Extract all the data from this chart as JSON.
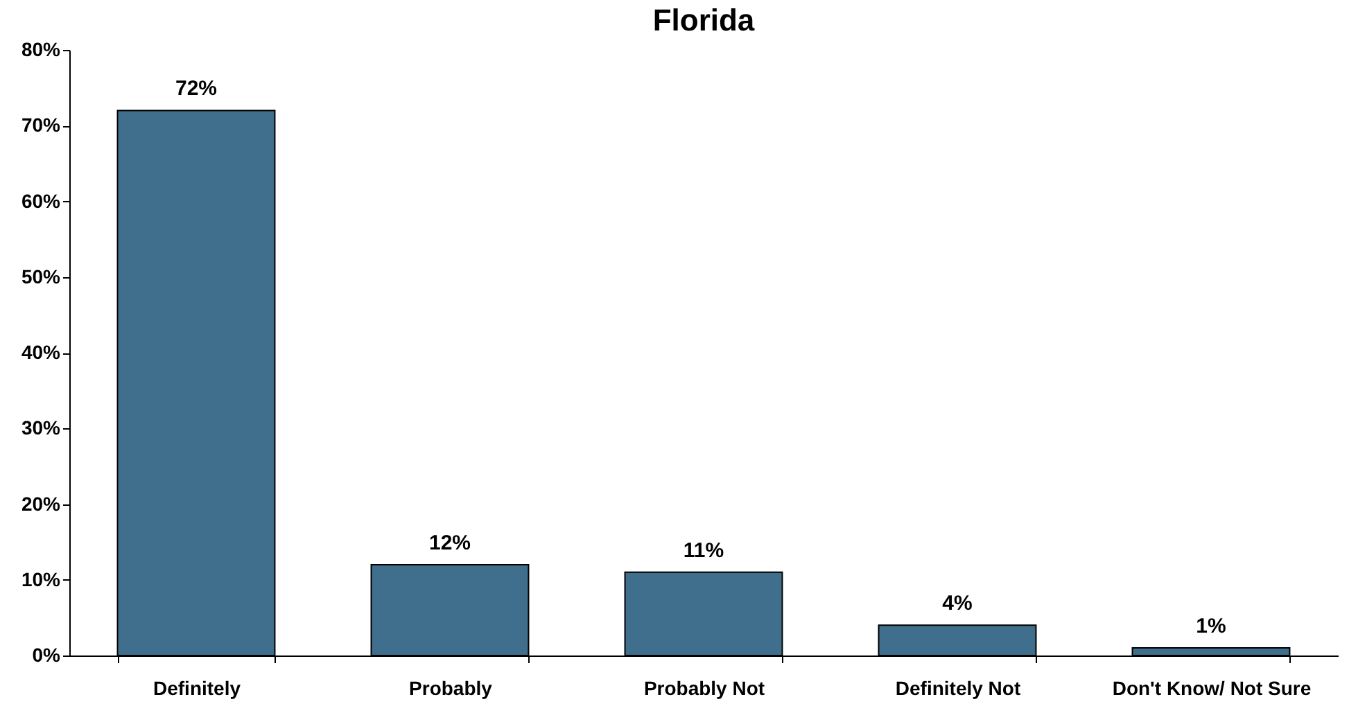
{
  "chart_data": {
    "type": "bar",
    "title": "Florida",
    "categories": [
      "Definitely",
      "Probably",
      "Probably Not",
      "Definitely Not",
      "Don't Know/ Not Sure"
    ],
    "values": [
      72,
      12,
      11,
      4,
      1
    ],
    "value_labels": [
      "72%",
      "12%",
      "11%",
      "4%",
      "1%"
    ],
    "color": "#3f6f8c",
    "ylim": [
      0,
      80
    ],
    "yticks": [
      {
        "value": 0,
        "label": "0%"
      },
      {
        "value": 10,
        "label": "10%"
      },
      {
        "value": 20,
        "label": "20%"
      },
      {
        "value": 30,
        "label": "30%"
      },
      {
        "value": 40,
        "label": "40%"
      },
      {
        "value": 50,
        "label": "50%"
      },
      {
        "value": 60,
        "label": "60%"
      },
      {
        "value": 70,
        "label": "70%"
      },
      {
        "value": 80,
        "label": "80%"
      }
    ],
    "grid": false
  }
}
